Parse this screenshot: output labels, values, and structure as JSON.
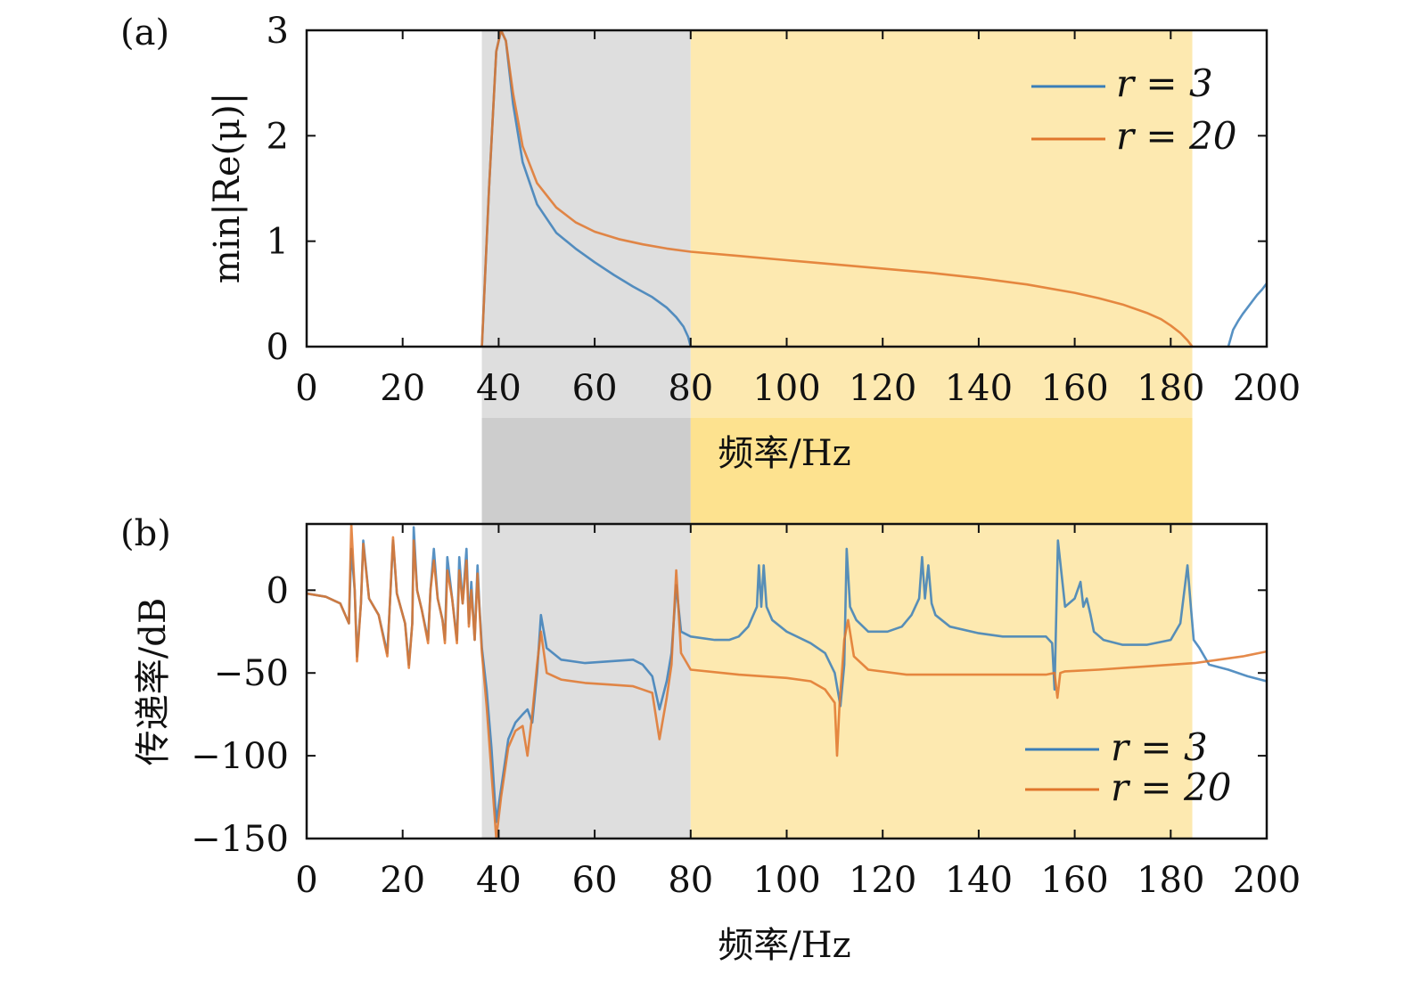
{
  "chart_data": [
    {
      "id": "a",
      "type": "line",
      "panel_label": "(a)",
      "xlabel": "频率/Hz",
      "ylabel": "min|Re(μ)|",
      "xlim": [
        0,
        200
      ],
      "ylim": [
        0,
        3
      ],
      "xticks": [
        0,
        20,
        40,
        60,
        80,
        100,
        120,
        140,
        160,
        180,
        200
      ],
      "yticks": [
        0,
        1,
        2,
        3
      ],
      "shaded_regions": [
        {
          "x0": 36.5,
          "x1": 80,
          "color": "#dedede"
        },
        {
          "x0": 80,
          "x1": 184.5,
          "color": "#fde9b0"
        }
      ],
      "legend": {
        "position": "top-right",
        "entries": [
          "r = 3",
          "r = 20"
        ]
      },
      "series": [
        {
          "name": "r = 3",
          "color": "#3a7eb8",
          "segments": [
            {
              "x": [
                36.5,
                38,
                39.5,
                40.5,
                41.5,
                43,
                45,
                48,
                52,
                56,
                60,
                64,
                68,
                72,
                75,
                77,
                78.5,
                79.5,
                80
              ],
              "y": [
                0,
                1.5,
                2.8,
                3.0,
                2.9,
                2.3,
                1.75,
                1.35,
                1.08,
                0.93,
                0.8,
                0.68,
                0.57,
                0.47,
                0.37,
                0.28,
                0.19,
                0.09,
                0
              ]
            },
            {
              "x": [
                192,
                193,
                194,
                195,
                196,
                197,
                198,
                199,
                200
              ],
              "y": [
                0,
                0.16,
                0.24,
                0.31,
                0.37,
                0.43,
                0.49,
                0.54,
                0.6
              ]
            }
          ]
        },
        {
          "name": "r = 20",
          "color": "#e0762c",
          "segments": [
            {
              "x": [
                36.5,
                38,
                39.5,
                40.5,
                41.5,
                43,
                45,
                48,
                52,
                56,
                60,
                65,
                70,
                75,
                80,
                90,
                100,
                110,
                120,
                130,
                140,
                150,
                160,
                165,
                170,
                175,
                178,
                180,
                182,
                183.5,
                184.5
              ],
              "y": [
                0,
                1.5,
                2.8,
                3.0,
                2.9,
                2.4,
                1.9,
                1.55,
                1.32,
                1.18,
                1.09,
                1.02,
                0.97,
                0.93,
                0.9,
                0.86,
                0.82,
                0.78,
                0.74,
                0.7,
                0.65,
                0.59,
                0.51,
                0.46,
                0.4,
                0.32,
                0.26,
                0.2,
                0.13,
                0.06,
                0
              ]
            }
          ]
        }
      ]
    },
    {
      "id": "b",
      "type": "line",
      "panel_label": "(b)",
      "xlabel": "频率/Hz",
      "ylabel": "传递率/dB",
      "xlim": [
        0,
        200
      ],
      "ylim": [
        -150,
        40
      ],
      "xticks": [
        0,
        20,
        40,
        60,
        80,
        100,
        120,
        140,
        160,
        180,
        200
      ],
      "yticks": [
        0,
        -50,
        -100,
        -150
      ],
      "ytick_labels": [
        "0",
        "−50",
        "−100",
        "−150"
      ],
      "shaded_regions": [
        {
          "x0": 36.5,
          "x1": 80,
          "color": "#dedede"
        },
        {
          "x0": 80,
          "x1": 184.5,
          "color": "#fde9b0"
        }
      ],
      "legend": {
        "position": "bottom-right",
        "entries": [
          "r = 3",
          "r = 20"
        ]
      },
      "series": [
        {
          "name": "r = 3",
          "color": "#3a7eb8",
          "x": [
            0,
            4,
            7,
            8.8,
            9.3,
            10,
            10.5,
            11.3,
            11.8,
            13,
            15,
            16.8,
            17.3,
            18,
            18.8,
            20.5,
            21.3,
            22,
            22.3,
            23,
            24,
            25.3,
            25.8,
            26.5,
            27.3,
            28.3,
            28.8,
            29.3,
            30.3,
            31.3,
            31.8,
            32.5,
            33.3,
            33.8,
            34.3,
            35,
            35.6,
            36,
            36.5,
            37.5,
            38.5,
            39.5,
            40.5,
            42,
            43.5,
            45,
            46,
            47,
            48,
            48.8,
            50,
            53,
            58,
            63,
            68,
            70,
            72,
            73.5,
            75,
            76,
            77,
            78,
            80,
            85,
            88,
            90,
            92,
            93.8,
            94.2,
            94.7,
            95.2,
            95.8,
            97,
            100,
            105,
            108,
            110,
            111.2,
            112,
            112.5,
            113.2,
            114.5,
            117,
            121,
            124,
            126,
            127.6,
            128.2,
            128.8,
            129.5,
            130.2,
            131,
            134,
            140,
            145,
            150,
            154,
            155.3,
            155.8,
            156.5,
            158,
            160,
            161.2,
            161.8,
            162.5,
            163.3,
            164,
            166,
            170,
            175,
            180,
            182,
            183.5,
            184.2,
            184.8,
            186,
            188,
            192,
            196,
            200
          ],
          "y": [
            -2,
            -4,
            -8,
            -20,
            25,
            0,
            -40,
            -8,
            30,
            -5,
            -15,
            -38,
            -10,
            30,
            -2,
            -20,
            -45,
            -20,
            38,
            0,
            -12,
            -30,
            0,
            25,
            -5,
            -18,
            -30,
            20,
            -5,
            -30,
            20,
            -8,
            25,
            -20,
            5,
            -30,
            15,
            -10,
            -35,
            -60,
            -95,
            -140,
            -120,
            -90,
            -80,
            -75,
            -72,
            -80,
            -50,
            -15,
            -35,
            -42,
            -44,
            -43,
            -42,
            -45,
            -52,
            -72,
            -55,
            -38,
            3,
            -25,
            -28,
            -30,
            -30,
            -28,
            -22,
            -10,
            15,
            -10,
            15,
            -10,
            -18,
            -25,
            -32,
            -38,
            -50,
            -70,
            -45,
            25,
            -10,
            -18,
            -25,
            -25,
            -22,
            -15,
            -5,
            20,
            -5,
            15,
            -8,
            -15,
            -22,
            -26,
            -28,
            -28,
            -28,
            -32,
            -60,
            30,
            -10,
            -5,
            5,
            -10,
            -5,
            -15,
            -25,
            -30,
            -33,
            -33,
            -30,
            -20,
            15,
            -10,
            -30,
            -35,
            -45,
            -48,
            -52,
            -55
          ]
        },
        {
          "name": "r = 20",
          "color": "#e0762c",
          "x": [
            0,
            4,
            7,
            8.8,
            9.3,
            10,
            10.5,
            11.3,
            11.8,
            13,
            15,
            16.8,
            17.3,
            18,
            18.8,
            20.5,
            21.3,
            22,
            22.3,
            23,
            24,
            25.3,
            25.8,
            26.5,
            27.3,
            28.3,
            28.8,
            29.3,
            30.3,
            31.3,
            31.8,
            32.5,
            33.3,
            33.8,
            34.3,
            35,
            35.6,
            36,
            36.5,
            37.5,
            38.5,
            39.5,
            40.5,
            42,
            43.5,
            45,
            46,
            47,
            48,
            48.8,
            50,
            53,
            58,
            63,
            68,
            70,
            72,
            73.5,
            75,
            76,
            77,
            78,
            80,
            90,
            100,
            105,
            108,
            110,
            110.5,
            111,
            112,
            112.8,
            114,
            117,
            125,
            135,
            145,
            150,
            154,
            155.8,
            156.4,
            157,
            158,
            165,
            175,
            185,
            190,
            195,
            200
          ],
          "y": [
            -2,
            -4,
            -8,
            -20,
            40,
            0,
            -43,
            -8,
            28,
            -5,
            -15,
            -40,
            -10,
            32,
            -2,
            -20,
            -47,
            -20,
            30,
            0,
            -12,
            -32,
            0,
            18,
            -5,
            -18,
            -32,
            12,
            -5,
            -32,
            12,
            -8,
            18,
            -22,
            0,
            -30,
            10,
            -12,
            -38,
            -70,
            -110,
            -150,
            -125,
            -95,
            -85,
            -82,
            -100,
            -75,
            -45,
            -25,
            -50,
            -54,
            -56,
            -57,
            -58,
            -60,
            -62,
            -90,
            -65,
            -45,
            12,
            -38,
            -48,
            -51,
            -53,
            -55,
            -60,
            -68,
            -100,
            -70,
            -30,
            -18,
            -40,
            -48,
            -51,
            -51,
            -51,
            -51,
            -51,
            -50,
            -65,
            -50,
            -49,
            -48,
            -46,
            -44,
            -42,
            -40,
            -37
          ]
        }
      ]
    }
  ]
}
